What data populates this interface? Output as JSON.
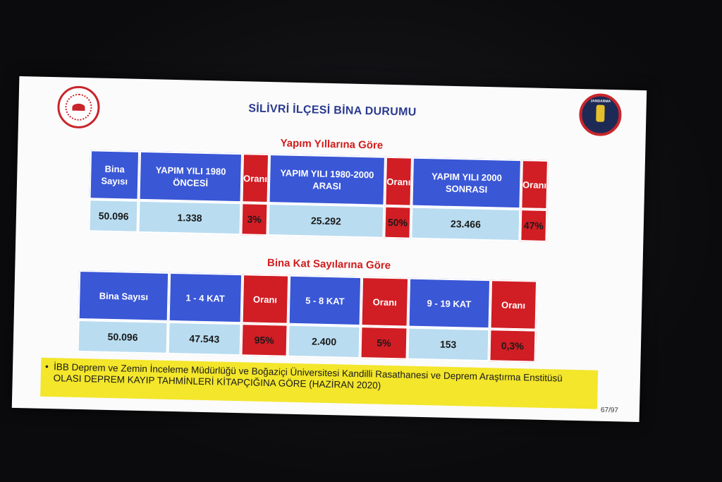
{
  "slide": {
    "title": "SİLİVRİ İLÇESİ BİNA DURUMU",
    "page_number": "67/97",
    "logo_right_text": "JANDARMA"
  },
  "section1": {
    "heading": "Yapım Yıllarına Göre",
    "headers": [
      "Bina Sayısı",
      "YAPIM YILI 1980 ÖNCESİ",
      "Oranı",
      "YAPIM YILI 1980-2000 ARASI",
      "Oranı",
      "YAPIM YILI 2000 SONRASI",
      "Oranı"
    ],
    "values": [
      "50.096",
      "1.338",
      "3%",
      "25.292",
      "50%",
      "23.466",
      "47%"
    ]
  },
  "section2": {
    "heading": "Bina Kat Sayılarına Göre",
    "headers": [
      "Bina Sayısı",
      "1 - 4 KAT",
      "Oranı",
      "5 - 8 KAT",
      "Oranı",
      "9 - 19 KAT",
      "Oranı"
    ],
    "values": [
      "50.096",
      "47.543",
      "95%",
      "2.400",
      "5%",
      "153",
      "0,3%"
    ]
  },
  "note": {
    "bullet": "•",
    "text": "İBB Deprem ve Zemin İnceleme Müdürlüğü ve Boğaziçi Üniversitesi Kandilli Rasathanesi ve Deprem Araştırma Enstitüsü OLASI DEPREM KAYIP TAHMİNLERİ KİTAPÇIĞINA GÖRE (HAZİRAN 2020)"
  },
  "colors": {
    "header_blue": "#3a57d6",
    "header_red": "#d11d24",
    "value_light_blue": "#b9dcf0",
    "title_blue": "#2b3a8f",
    "subtitle_red": "#d11d1d",
    "note_yellow": "#f3e62b"
  }
}
